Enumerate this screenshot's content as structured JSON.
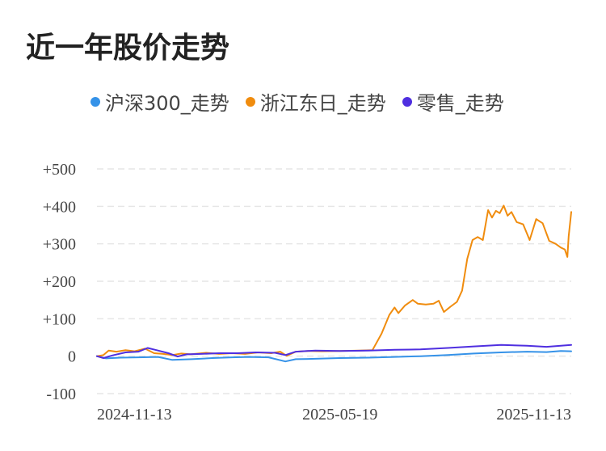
{
  "chart_data": {
    "type": "line",
    "title": "近一年股价走势",
    "xlabel": "",
    "ylabel": "",
    "ylim": [
      -100,
      500
    ],
    "yticks": [
      "+500",
      "+400",
      "+300",
      "+200",
      "+100",
      "0",
      "-100"
    ],
    "ytick_values": [
      500,
      400,
      300,
      200,
      100,
      0,
      -100
    ],
    "xtick_labels": [
      "2024-11-13",
      "2025-05-19",
      "2025-11-13"
    ],
    "xtick_dates": [
      "2024-11-13",
      "2025-05-19",
      "2025-11-13"
    ],
    "xlim": [
      "2024-11-13",
      "2025-11-13"
    ],
    "grid": true,
    "legend_position": "top",
    "series": [
      {
        "name": "沪深300_走势",
        "color": "#3592e8",
        "points": [
          [
            "2024-11-13",
            0
          ],
          [
            "2024-11-20",
            -6
          ],
          [
            "2024-12-01",
            -4
          ],
          [
            "2024-12-15",
            -3
          ],
          [
            "2024-12-30",
            -2
          ],
          [
            "2025-01-10",
            -10
          ],
          [
            "2025-01-25",
            -8
          ],
          [
            "2025-02-10",
            -5
          ],
          [
            "2025-02-25",
            -3
          ],
          [
            "2025-03-10",
            -2
          ],
          [
            "2025-03-25",
            -3
          ],
          [
            "2025-04-07",
            -14
          ],
          [
            "2025-04-15",
            -8
          ],
          [
            "2025-04-30",
            -7
          ],
          [
            "2025-05-19",
            -5
          ],
          [
            "2025-06-10",
            -4
          ],
          [
            "2025-06-30",
            -2
          ],
          [
            "2025-07-20",
            0
          ],
          [
            "2025-08-10",
            3
          ],
          [
            "2025-08-30",
            7
          ],
          [
            "2025-09-20",
            10
          ],
          [
            "2025-10-10",
            12
          ],
          [
            "2025-10-25",
            11
          ],
          [
            "2025-11-05",
            14
          ],
          [
            "2025-11-13",
            13
          ]
        ]
      },
      {
        "name": "浙江东日_走势",
        "color": "#f08c0e",
        "points": [
          [
            "2024-11-13",
            0
          ],
          [
            "2024-11-18",
            3
          ],
          [
            "2024-11-22",
            15
          ],
          [
            "2024-11-28",
            12
          ],
          [
            "2024-12-05",
            16
          ],
          [
            "2024-12-12",
            13
          ],
          [
            "2024-12-20",
            20
          ],
          [
            "2024-12-27",
            8
          ],
          [
            "2025-01-03",
            6
          ],
          [
            "2025-01-10",
            3
          ],
          [
            "2025-01-17",
            7
          ],
          [
            "2025-01-24",
            5
          ],
          [
            "2025-02-05",
            9
          ],
          [
            "2025-02-15",
            6
          ],
          [
            "2025-02-25",
            8
          ],
          [
            "2025-03-07",
            6
          ],
          [
            "2025-03-17",
            10
          ],
          [
            "2025-03-27",
            8
          ],
          [
            "2025-04-03",
            12
          ],
          [
            "2025-04-08",
            1
          ],
          [
            "2025-04-15",
            12
          ],
          [
            "2025-04-25",
            14
          ],
          [
            "2025-05-05",
            13
          ],
          [
            "2025-05-19",
            14
          ],
          [
            "2025-06-03",
            15
          ],
          [
            "2025-06-13",
            16
          ],
          [
            "2025-06-20",
            60
          ],
          [
            "2025-06-26",
            110
          ],
          [
            "2025-06-30",
            130
          ],
          [
            "2025-07-03",
            115
          ],
          [
            "2025-07-08",
            135
          ],
          [
            "2025-07-14",
            150
          ],
          [
            "2025-07-18",
            140
          ],
          [
            "2025-07-24",
            138
          ],
          [
            "2025-07-30",
            140
          ],
          [
            "2025-08-03",
            148
          ],
          [
            "2025-08-07",
            118
          ],
          [
            "2025-08-12",
            132
          ],
          [
            "2025-08-17",
            145
          ],
          [
            "2025-08-21",
            175
          ],
          [
            "2025-08-25",
            260
          ],
          [
            "2025-08-29",
            310
          ],
          [
            "2025-09-02",
            318
          ],
          [
            "2025-09-06",
            310
          ],
          [
            "2025-09-10",
            390
          ],
          [
            "2025-09-13",
            370
          ],
          [
            "2025-09-16",
            388
          ],
          [
            "2025-09-19",
            382
          ],
          [
            "2025-09-22",
            402
          ],
          [
            "2025-09-25",
            375
          ],
          [
            "2025-09-28",
            385
          ],
          [
            "2025-10-02",
            358
          ],
          [
            "2025-10-07",
            352
          ],
          [
            "2025-10-12",
            310
          ],
          [
            "2025-10-17",
            366
          ],
          [
            "2025-10-22",
            355
          ],
          [
            "2025-10-27",
            308
          ],
          [
            "2025-11-01",
            300
          ],
          [
            "2025-11-05",
            290
          ],
          [
            "2025-11-08",
            285
          ],
          [
            "2025-11-10",
            265
          ],
          [
            "2025-11-11",
            320
          ],
          [
            "2025-11-13",
            385
          ]
        ]
      },
      {
        "name": "零售_走势",
        "color": "#4f2fe0",
        "points": [
          [
            "2024-11-13",
            0
          ],
          [
            "2024-11-18",
            -5
          ],
          [
            "2024-11-25",
            2
          ],
          [
            "2024-12-05",
            10
          ],
          [
            "2024-12-15",
            12
          ],
          [
            "2024-12-22",
            22
          ],
          [
            "2024-12-30",
            15
          ],
          [
            "2025-01-07",
            8
          ],
          [
            "2025-01-14",
            -1
          ],
          [
            "2025-01-21",
            5
          ],
          [
            "2025-02-01",
            6
          ],
          [
            "2025-02-15",
            8
          ],
          [
            "2025-03-01",
            8
          ],
          [
            "2025-03-15",
            10
          ],
          [
            "2025-03-30",
            9
          ],
          [
            "2025-04-07",
            3
          ],
          [
            "2025-04-15",
            12
          ],
          [
            "2025-04-30",
            15
          ],
          [
            "2025-05-19",
            14
          ],
          [
            "2025-06-10",
            15
          ],
          [
            "2025-06-30",
            17
          ],
          [
            "2025-07-20",
            18
          ],
          [
            "2025-08-10",
            22
          ],
          [
            "2025-08-30",
            26
          ],
          [
            "2025-09-20",
            30
          ],
          [
            "2025-10-10",
            28
          ],
          [
            "2025-10-25",
            25
          ],
          [
            "2025-11-05",
            28
          ],
          [
            "2025-11-13",
            30
          ]
        ]
      }
    ]
  }
}
